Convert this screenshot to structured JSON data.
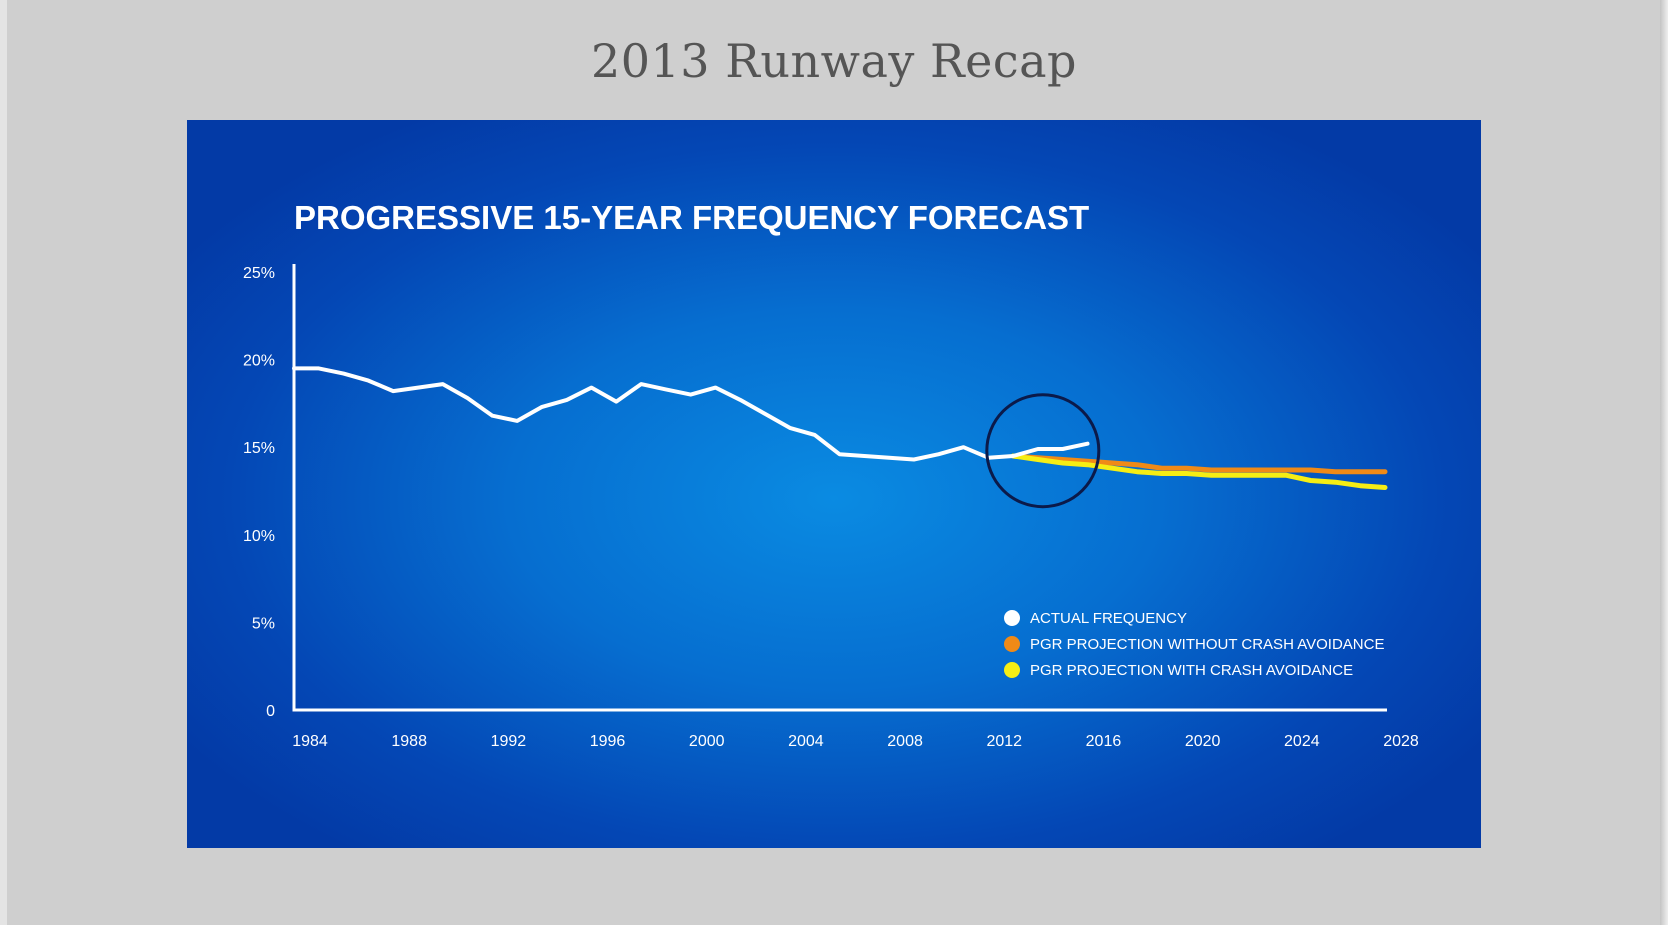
{
  "slide": {
    "title": "2013 Runway Recap"
  },
  "chart_data": {
    "type": "line",
    "title": "PROGRESSIVE 15-YEAR FREQUENCY FORECAST",
    "xlabel": "",
    "ylabel": "",
    "xlim": [
      1984,
      2028
    ],
    "ylim": [
      0,
      25
    ],
    "x_ticks": [
      1984,
      1988,
      1992,
      1996,
      2000,
      2004,
      2008,
      2012,
      2016,
      2020,
      2024,
      2028
    ],
    "x_tick_labels": [
      "1984",
      "1988",
      "1992",
      "1996",
      "2000",
      "2004",
      "2008",
      "2012",
      "2016",
      "2020",
      "2024",
      "2028"
    ],
    "y_ticks": [
      0,
      5,
      10,
      15,
      20,
      25
    ],
    "y_tick_labels": [
      "0",
      "5%",
      "10%",
      "15%",
      "20%",
      "25%"
    ],
    "grid": false,
    "legend_position": "bottom-right",
    "series": [
      {
        "name": "ACTUAL FREQUENCY",
        "color": "#ffffff",
        "x": [
          1984,
          1985,
          1986,
          1987,
          1988,
          1989,
          1990,
          1991,
          1992,
          1993,
          1994,
          1995,
          1996,
          1997,
          1998,
          1999,
          2000,
          2001,
          2002,
          2003,
          2004,
          2005,
          2006,
          2007,
          2008,
          2009,
          2010,
          2011,
          2012,
          2013,
          2014,
          2015,
          2016
        ],
        "values": [
          19.5,
          19.5,
          19.2,
          18.8,
          18.2,
          18.4,
          18.6,
          17.8,
          16.8,
          16.5,
          17.3,
          17.7,
          18.4,
          17.6,
          18.6,
          18.3,
          18.0,
          18.4,
          17.7,
          16.9,
          16.1,
          15.7,
          14.6,
          14.5,
          14.4,
          14.3,
          14.6,
          15.0,
          14.4,
          14.5,
          14.9,
          14.9,
          15.2
        ]
      },
      {
        "name": "PGR PROJECTION WITHOUT CRASH AVOIDANCE",
        "color": "#f08a17",
        "x": [
          2013,
          2014,
          2015,
          2016,
          2017,
          2018,
          2019,
          2020,
          2021,
          2022,
          2023,
          2024,
          2025,
          2026,
          2027,
          2028
        ],
        "values": [
          14.5,
          14.4,
          14.3,
          14.2,
          14.1,
          14.0,
          13.8,
          13.8,
          13.7,
          13.7,
          13.7,
          13.7,
          13.7,
          13.6,
          13.6,
          13.6
        ]
      },
      {
        "name": "PGR PROJECTION WITH CRASH AVOIDANCE",
        "color": "#f6ee14",
        "x": [
          2013,
          2014,
          2015,
          2016,
          2017,
          2018,
          2019,
          2020,
          2021,
          2022,
          2023,
          2024,
          2025,
          2026,
          2027,
          2028
        ],
        "values": [
          14.5,
          14.3,
          14.1,
          14.0,
          13.8,
          13.6,
          13.5,
          13.5,
          13.4,
          13.4,
          13.4,
          13.4,
          13.1,
          13.0,
          12.8,
          12.7
        ]
      }
    ],
    "annotations": [
      {
        "type": "circle",
        "x": 2014.2,
        "y": 14.8
      }
    ]
  }
}
